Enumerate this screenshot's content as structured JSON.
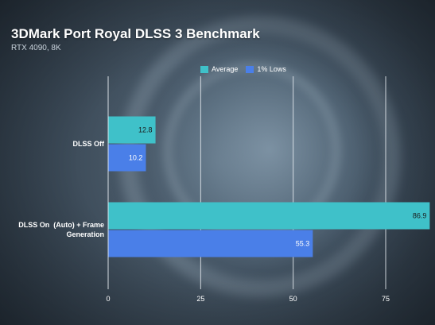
{
  "title": "3DMark Port Royal DLSS 3 Benchmark",
  "subtitle": "RTX 4090, 8K",
  "colors": {
    "average": "#3fc1c9",
    "lows": "#4a7fe8",
    "gridline": "#e8edf2",
    "text": "#ffffff"
  },
  "chart_data": {
    "type": "bar",
    "orientation": "horizontal",
    "title": "3DMark Port Royal DLSS 3 Benchmark",
    "subtitle": "RTX 4090, 8K",
    "categories": [
      "DLSS Off",
      "DLSS On  (Auto) + Frame Generation"
    ],
    "category_lines": [
      [
        "DLSS Off"
      ],
      [
        "DLSS On  (Auto) + Frame",
        "Generation"
      ]
    ],
    "series": [
      {
        "name": "Average",
        "values": [
          12.8,
          86.9
        ],
        "color": "#3fc1c9"
      },
      {
        "name": "1% Lows",
        "values": [
          10.2,
          55.3
        ],
        "color": "#4a7fe8"
      }
    ],
    "xlim": [
      0,
      90
    ],
    "xticks": [
      0,
      25,
      50,
      75
    ],
    "xlabel": "",
    "ylabel": "",
    "grid": true,
    "legend_position": "top"
  }
}
